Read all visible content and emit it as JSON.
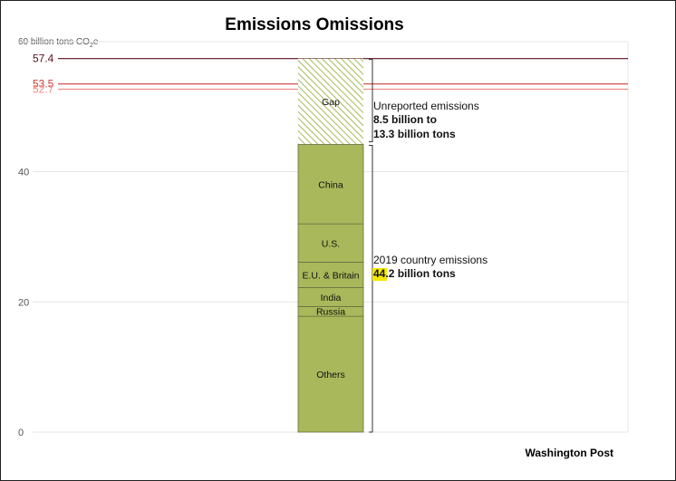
{
  "chart_data": {
    "type": "bar",
    "title": "Emissions Omissions",
    "y_unit_text": "60 billion tons CO",
    "y_unit_sub": "2",
    "y_unit_suffix": "e",
    "ylim": [
      0,
      60
    ],
    "yticks": [
      {
        "value": 0,
        "label": "0"
      },
      {
        "value": 20,
        "label": "20"
      },
      {
        "value": 40,
        "label": "40"
      }
    ],
    "grid": true,
    "segments": [
      {
        "name": "Others",
        "start": 0,
        "end": 17.8,
        "color": "#a9b85a"
      },
      {
        "name": "Russia",
        "start": 17.8,
        "end": 19.3,
        "color": "#a9b85a"
      },
      {
        "name": "India",
        "start": 19.3,
        "end": 22.2,
        "color": "#a9b85a"
      },
      {
        "name": "E.U. & Britain",
        "start": 22.2,
        "end": 26.1,
        "color": "#a9b85a"
      },
      {
        "name": "U.S.",
        "start": 26.1,
        "end": 32.0,
        "color": "#a9b85a"
      },
      {
        "name": "China",
        "start": 32.0,
        "end": 44.2,
        "color": "#a9b85a"
      }
    ],
    "gap": {
      "name": "Gap",
      "start": 44.2,
      "end": 57.4,
      "color": "#a9b85a"
    },
    "reference_lines": [
      {
        "value": 57.4,
        "label": "57.4",
        "color": "#5a1020"
      },
      {
        "value": 53.5,
        "label": "53.5",
        "color": "#c8413e"
      },
      {
        "value": 52.7,
        "label": "52.7",
        "color": "#ec8a80"
      }
    ],
    "annotations": {
      "gap": {
        "line1": "Unreported emissions",
        "line2": "8.5 billion to",
        "line3": "13.3 billion tons"
      },
      "country": {
        "line1": "2019 country emissions",
        "highlight": "44",
        "rest": ".2 billion tons",
        "highlight_color": "#f5e800"
      }
    },
    "credit": "Washington Post"
  }
}
